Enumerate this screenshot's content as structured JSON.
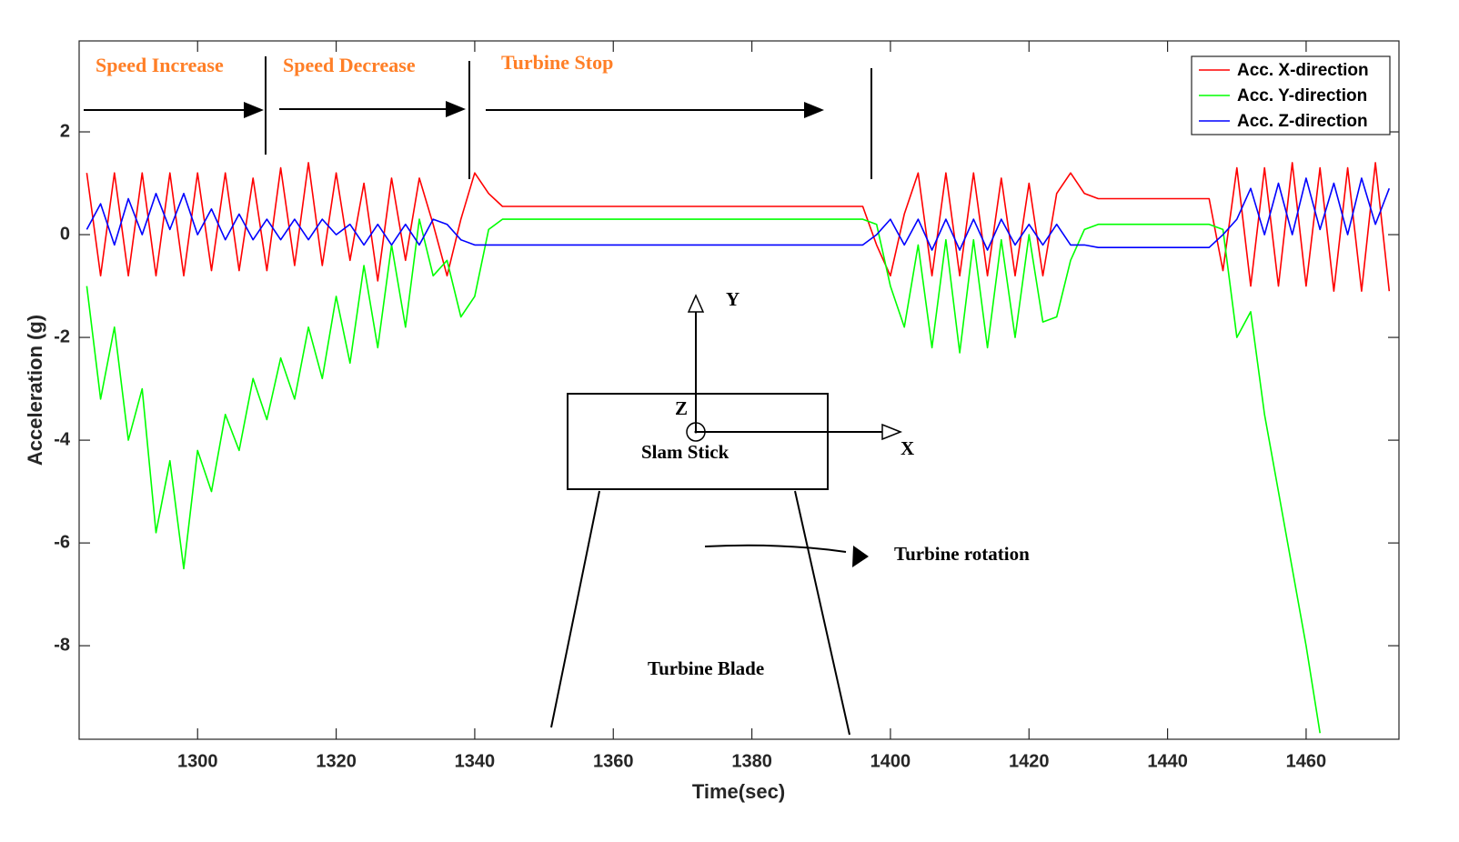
{
  "chart_data": {
    "type": "line",
    "xlabel": "Time(sec)",
    "ylabel": "Acceleration (g)",
    "xlim": [
      1282.9,
      1473.4
    ],
    "ylim": [
      -9.82,
      3.77
    ],
    "xticks": [
      1300,
      1320,
      1340,
      1360,
      1380,
      1400,
      1420,
      1440,
      1460
    ],
    "yticks": [
      -8,
      -6,
      -4,
      -2,
      0,
      2
    ],
    "grid": false,
    "legend": "upper right",
    "annotations": [
      "Speed Increase",
      "Speed Decrease",
      "Turbine Stop",
      "Y",
      "Z",
      "X",
      "Slam Stick",
      "Turbine rotation",
      "Turbine Blade"
    ],
    "x": [
      1284,
      1286,
      1288,
      1290,
      1292,
      1294,
      1296,
      1298,
      1300,
      1302,
      1304,
      1306,
      1308,
      1310,
      1312,
      1314,
      1316,
      1318,
      1320,
      1322,
      1324,
      1326,
      1328,
      1330,
      1332,
      1334,
      1336,
      1338,
      1340,
      1342,
      1344,
      1346,
      1348,
      1350,
      1352,
      1354,
      1356,
      1358,
      1360,
      1362,
      1364,
      1366,
      1368,
      1370,
      1372,
      1374,
      1376,
      1378,
      1380,
      1382,
      1384,
      1386,
      1388,
      1390,
      1392,
      1394,
      1396,
      1398,
      1400,
      1402,
      1404,
      1406,
      1408,
      1410,
      1412,
      1414,
      1416,
      1418,
      1420,
      1422,
      1424,
      1426,
      1428,
      1430,
      1432,
      1434,
      1436,
      1438,
      1440,
      1442,
      1444,
      1446,
      1448,
      1450,
      1452,
      1454,
      1456,
      1458,
      1460,
      1462,
      1464,
      1466,
      1468,
      1470,
      1472
    ],
    "series": [
      {
        "name": "Acc. X-direction",
        "color": "#ff0000",
        "values": [
          1.2,
          -0.8,
          1.2,
          -0.8,
          1.2,
          -0.8,
          1.2,
          -0.8,
          1.2,
          -0.7,
          1.2,
          -0.7,
          1.1,
          -0.7,
          1.3,
          -0.6,
          1.4,
          -0.6,
          1.2,
          -0.5,
          1.0,
          -0.9,
          1.1,
          -0.5,
          1.1,
          0.2,
          -0.8,
          0.3,
          1.2,
          0.8,
          0.55,
          0.55,
          0.55,
          0.55,
          0.55,
          0.55,
          0.55,
          0.55,
          0.55,
          0.55,
          0.55,
          0.55,
          0.55,
          0.55,
          0.55,
          0.55,
          0.55,
          0.55,
          0.55,
          0.55,
          0.55,
          0.55,
          0.55,
          0.55,
          0.55,
          0.55,
          0.55,
          -0.2,
          -0.8,
          0.4,
          1.2,
          -0.8,
          1.2,
          -0.8,
          1.2,
          -0.8,
          1.1,
          -0.8,
          1.0,
          -0.8,
          0.8,
          1.2,
          0.8,
          0.7,
          0.7,
          0.7,
          0.7,
          0.7,
          0.7,
          0.7,
          0.7,
          0.7,
          -0.7,
          1.3,
          -1.0,
          1.3,
          -1.0,
          1.4,
          -1.0,
          1.3,
          -1.1,
          1.3,
          -1.1,
          1.4,
          -1.1
        ]
      },
      {
        "name": "Acc. Y-direction",
        "color": "#00ff00",
        "values": [
          -1.0,
          -3.2,
          -1.8,
          -4.0,
          -3.0,
          -5.8,
          -4.4,
          -6.5,
          -4.2,
          -5.0,
          -3.5,
          -4.2,
          -2.8,
          -3.6,
          -2.4,
          -3.2,
          -1.8,
          -2.8,
          -1.2,
          -2.5,
          -0.6,
          -2.2,
          -0.2,
          -1.8,
          0.3,
          -0.8,
          -0.5,
          -1.6,
          -1.2,
          0.1,
          0.3,
          0.3,
          0.3,
          0.3,
          0.3,
          0.3,
          0.3,
          0.3,
          0.3,
          0.3,
          0.3,
          0.3,
          0.3,
          0.3,
          0.3,
          0.3,
          0.3,
          0.3,
          0.3,
          0.3,
          0.3,
          0.3,
          0.3,
          0.3,
          0.3,
          0.3,
          0.3,
          0.2,
          -1.0,
          -1.8,
          -0.2,
          -2.2,
          -0.1,
          -2.3,
          -0.1,
          -2.2,
          -0.1,
          -2.0,
          0.0,
          -1.7,
          -1.6,
          -0.5,
          0.1,
          0.2,
          0.2,
          0.2,
          0.2,
          0.2,
          0.2,
          0.2,
          0.2,
          0.2,
          0.1,
          -2.0,
          -1.5,
          -3.5,
          -5.0,
          -6.5,
          -8.0,
          -9.7,
          null,
          null,
          null,
          null,
          null
        ]
      },
      {
        "name": "Acc. Z-direction",
        "color": "#0000ff",
        "values": [
          0.1,
          0.6,
          -0.2,
          0.7,
          0.0,
          0.8,
          0.1,
          0.8,
          0.0,
          0.5,
          -0.1,
          0.4,
          -0.1,
          0.3,
          -0.1,
          0.3,
          -0.1,
          0.3,
          0.0,
          0.2,
          -0.2,
          0.2,
          -0.2,
          0.2,
          -0.2,
          0.3,
          0.2,
          -0.1,
          -0.2,
          -0.2,
          -0.2,
          -0.2,
          -0.2,
          -0.2,
          -0.2,
          -0.2,
          -0.2,
          -0.2,
          -0.2,
          -0.2,
          -0.2,
          -0.2,
          -0.2,
          -0.2,
          -0.2,
          -0.2,
          -0.2,
          -0.2,
          -0.2,
          -0.2,
          -0.2,
          -0.2,
          -0.2,
          -0.2,
          -0.2,
          -0.2,
          -0.2,
          0.0,
          0.3,
          -0.2,
          0.3,
          -0.3,
          0.3,
          -0.3,
          0.3,
          -0.3,
          0.3,
          -0.2,
          0.2,
          -0.2,
          0.2,
          -0.2,
          -0.2,
          -0.25,
          -0.25,
          -0.25,
          -0.25,
          -0.25,
          -0.25,
          -0.25,
          -0.25,
          -0.25,
          0.0,
          0.3,
          0.9,
          0.0,
          1.0,
          0.0,
          1.1,
          0.1,
          1.0,
          0.0,
          1.1,
          0.2,
          0.9
        ]
      }
    ]
  }
}
